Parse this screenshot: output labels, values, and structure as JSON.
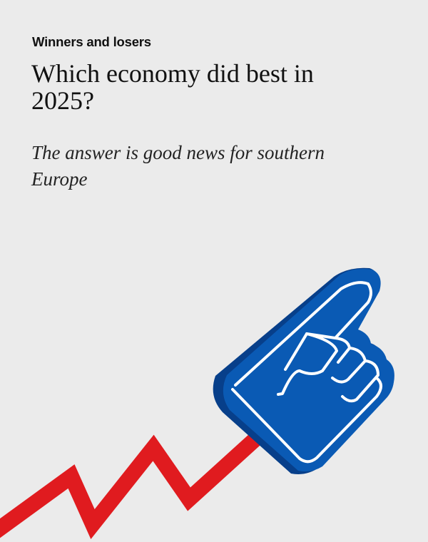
{
  "article": {
    "kicker": "Winners and losers",
    "title": "Which economy did best in 2025?",
    "subtitle": "The answer is good news for southern Europe"
  },
  "illustration": {
    "icon": "foam-finger-pointing-up-icon",
    "line": "zigzag-rising-line",
    "colors": {
      "background": "#ebebeb",
      "hand": "#0a5ab4",
      "hand_shadow": "#073f8a",
      "line": "#e01b1f"
    }
  }
}
